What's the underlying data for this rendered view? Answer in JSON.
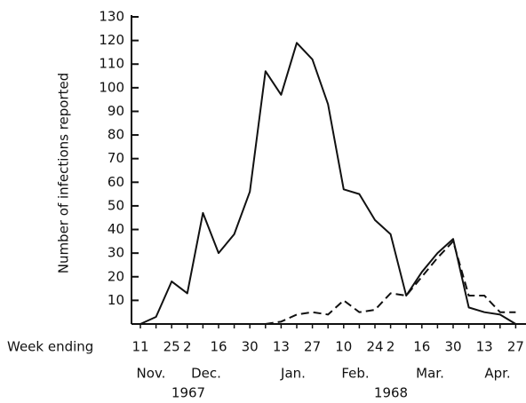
{
  "chart_data": {
    "type": "line",
    "y_label": "Number of infections reported",
    "x_label": "Week ending",
    "categories": [
      "11",
      null,
      "25",
      "2",
      null,
      "16",
      null,
      "30",
      null,
      "13",
      null,
      "27",
      null,
      "10",
      null,
      "24",
      "2",
      null,
      "16",
      null,
      "30",
      null,
      "13",
      null,
      "27"
    ],
    "months": [
      "Nov.",
      "Dec.",
      "Jan.",
      "Feb.",
      "Mar.",
      "Apr."
    ],
    "years": [
      "1967",
      "1968"
    ],
    "series": [
      {
        "color": "#111111",
        "dash": false,
        "values": [
          0,
          3,
          18,
          13,
          47,
          30,
          38,
          56,
          107,
          97,
          119,
          112,
          93,
          57,
          55,
          44,
          38,
          12,
          22,
          30,
          36,
          7,
          5,
          4,
          0
        ]
      },
      {
        "color": "#111111",
        "dash": true,
        "values": [
          null,
          null,
          null,
          null,
          null,
          null,
          null,
          null,
          0,
          1,
          4,
          5,
          4,
          10,
          5,
          6,
          13,
          12,
          20,
          28,
          35,
          12,
          12,
          5,
          5
        ]
      }
    ],
    "ylim": [
      0,
      130
    ],
    "yticks": [
      10,
      20,
      30,
      40,
      50,
      60,
      70,
      80,
      90,
      100,
      110,
      120,
      130
    ]
  }
}
